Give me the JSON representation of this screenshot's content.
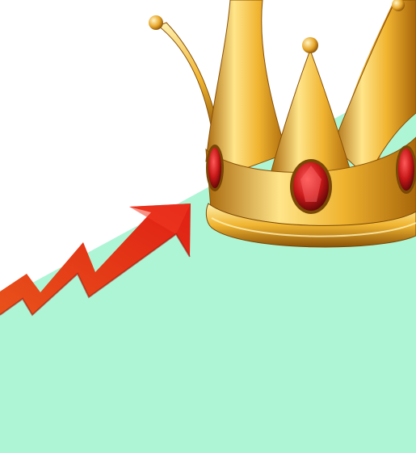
{
  "scene": {
    "background_color": "#ffffff",
    "ground_color": "#aef5d6",
    "arrow": {
      "icon": "trending-up-arrow-icon",
      "color_start": "#e8521a",
      "color_end": "#e01f14"
    },
    "crown": {
      "icon": "crown-icon",
      "gold_light": "#ffe58a",
      "gold_mid": "#f0b430",
      "gold_dark": "#a8660a",
      "gem_color": "#c81818",
      "gem_highlight": "#ff5a5a",
      "gem_count_visible": 3,
      "spire_count_visible": 4
    }
  }
}
